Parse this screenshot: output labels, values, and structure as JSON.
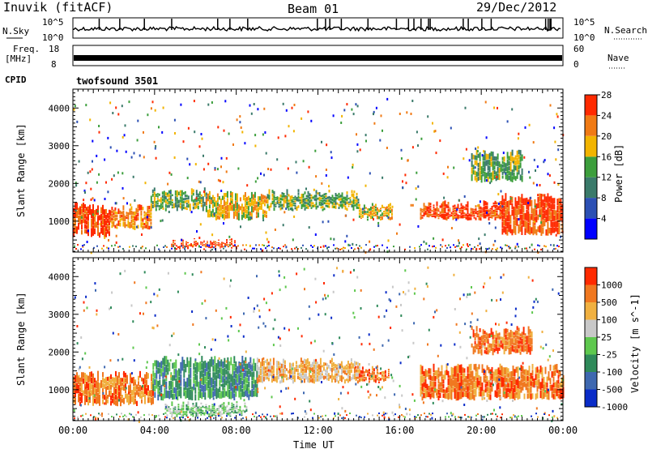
{
  "header": {
    "station": "Inuvik (fitACF)",
    "beam": "Beam 01",
    "date": "29/Dec/2012"
  },
  "top_panels": {
    "nsky_label": "N.Sky",
    "nsky_ticks": [
      "10^5",
      "10^0"
    ],
    "nsearch_label": "N.Search",
    "nsearch_ticks": [
      "10^5",
      "10^0"
    ],
    "freq_label": "Freq.",
    "freq_unit": "[MHz]",
    "freq_ticks": [
      "18",
      "8"
    ],
    "nave_label": "Nave",
    "nave_ticks": [
      "60",
      "0"
    ],
    "cpid_label": "CPID",
    "cpid_value": "twofsound 3501"
  },
  "chart_data": [
    {
      "type": "heatmap",
      "panel": "power",
      "ylabel": "Slant Range [km]",
      "y_ticks": [
        "1000",
        "2000",
        "3000",
        "4000"
      ],
      "ylim": [
        180,
        4500
      ],
      "xlim": [
        0,
        24
      ],
      "colorbar_label": "Power [dB]",
      "colorbar_ticks": [
        "4",
        "8",
        "12",
        "16",
        "20",
        "24",
        "28"
      ],
      "colorbar_colors": [
        "#0000ff",
        "#2c50b4",
        "#3a7a6a",
        "#3c9e3c",
        "#f2b400",
        "#f07a14",
        "#ff2a00"
      ],
      "regions": [
        {
          "t0": 0.0,
          "t1": 1.8,
          "r0": 550,
          "r1": 1500,
          "level": 6
        },
        {
          "t0": 1.8,
          "t1": 3.8,
          "r0": 750,
          "r1": 1450,
          "level": 5
        },
        {
          "t0": 3.8,
          "t1": 6.5,
          "r0": 1250,
          "r1": 1900,
          "level": 3
        },
        {
          "t0": 4.8,
          "t1": 8.0,
          "r0": 250,
          "r1": 550,
          "level": 6
        },
        {
          "t0": 6.5,
          "t1": 9.5,
          "r0": 1000,
          "r1": 1800,
          "level": 4
        },
        {
          "t0": 9.5,
          "t1": 14.0,
          "r0": 1250,
          "r1": 1850,
          "level": 3
        },
        {
          "t0": 14.0,
          "t1": 15.6,
          "r0": 1000,
          "r1": 1500,
          "level": 4
        },
        {
          "t0": 17.0,
          "t1": 21.0,
          "r0": 1000,
          "r1": 1550,
          "level": 6
        },
        {
          "t0": 21.0,
          "t1": 24.0,
          "r0": 600,
          "r1": 1750,
          "level": 6
        },
        {
          "t0": 19.5,
          "t1": 22.0,
          "r0": 2000,
          "r1": 2900,
          "level": 3
        }
      ]
    },
    {
      "type": "heatmap",
      "panel": "velocity",
      "ylabel": "Slant Range [km]",
      "y_ticks": [
        "1000",
        "2000",
        "3000",
        "4000"
      ],
      "ylim": [
        180,
        4500
      ],
      "xlim": [
        0,
        24
      ],
      "x_ticks": [
        "00:00",
        "04:00",
        "08:00",
        "12:00",
        "16:00",
        "20:00",
        "00:00"
      ],
      "xlabel": "Time UT",
      "colorbar_label": "Velocity [m s^-1]",
      "colorbar_ticks": [
        "1000",
        "500",
        "100",
        "25",
        "-25",
        "-100",
        "-500",
        "-1000"
      ],
      "colorbar_colors": [
        "#0a2cc8",
        "#3e68b0",
        "#2f8a5a",
        "#5ec84e",
        "#c8c8c8",
        "#f0b040",
        "#f07820",
        "#ff2a00"
      ],
      "regions": [
        {
          "t0": 0.0,
          "t1": 3.9,
          "r0": 550,
          "r1": 1500,
          "level": 6
        },
        {
          "t0": 3.9,
          "t1": 9.0,
          "r0": 700,
          "r1": 1900,
          "level": 2
        },
        {
          "t0": 4.5,
          "t1": 8.5,
          "r0": 250,
          "r1": 700,
          "level": 3
        },
        {
          "t0": 9.0,
          "t1": 14.0,
          "r0": 1150,
          "r1": 1850,
          "level": 5
        },
        {
          "t0": 14.0,
          "t1": 15.5,
          "r0": 1150,
          "r1": 1650,
          "level": 6
        },
        {
          "t0": 17.0,
          "t1": 24.0,
          "r0": 700,
          "r1": 1700,
          "level": 6
        },
        {
          "t0": 19.5,
          "t1": 22.5,
          "r0": 1900,
          "r1": 2700,
          "level": 6
        }
      ]
    }
  ]
}
